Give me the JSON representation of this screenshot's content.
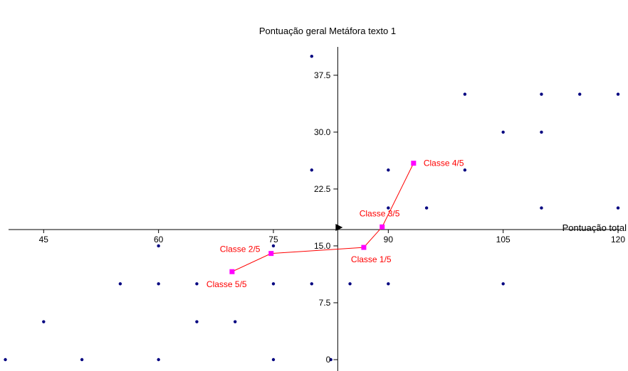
{
  "chart_data": {
    "type": "scatter",
    "title": "Pontuação geral Metáfora texto 1",
    "xlabel": "Pontuação total",
    "ylabel": "",
    "xlim": [
      39.3,
      121.3
    ],
    "ylim": [
      -1.5,
      41.8
    ],
    "x_axis_crossing_y": 17.15,
    "y_axis_crossing_x": 83.4,
    "x_ticks": [
      {
        "value": 45,
        "label": "45"
      },
      {
        "value": 60,
        "label": "60"
      },
      {
        "value": 75,
        "label": "75"
      },
      {
        "value": 90,
        "label": "90"
      },
      {
        "value": 105,
        "label": "105"
      },
      {
        "value": 120,
        "label": "120"
      }
    ],
    "y_ticks": [
      {
        "value": 0,
        "label": "0"
      },
      {
        "value": 7.5,
        "label": "7.5"
      },
      {
        "value": 15,
        "label": "15.0"
      },
      {
        "value": 22.5,
        "label": "22.5"
      },
      {
        "value": 30,
        "label": "30.0"
      },
      {
        "value": 37.5,
        "label": "37.5"
      }
    ],
    "colors": {
      "points": "#000080",
      "centroids": "#ff00ff",
      "centroid_line": "#ff0000",
      "centroid_labels": "#ff0000",
      "axes": "#000000"
    },
    "series": [
      {
        "points": [
          {
            "x": 40,
            "y": 0
          },
          {
            "x": 50,
            "y": 0
          },
          {
            "x": 60,
            "y": 0
          },
          {
            "x": 75,
            "y": 0
          },
          {
            "x": 82.5,
            "y": 0
          },
          {
            "x": 45,
            "y": 5
          },
          {
            "x": 65,
            "y": 5
          },
          {
            "x": 70,
            "y": 5
          },
          {
            "x": 55,
            "y": 10
          },
          {
            "x": 60,
            "y": 10
          },
          {
            "x": 65,
            "y": 10
          },
          {
            "x": 75,
            "y": 10
          },
          {
            "x": 80,
            "y": 10
          },
          {
            "x": 85,
            "y": 10
          },
          {
            "x": 90,
            "y": 10
          },
          {
            "x": 105,
            "y": 10
          },
          {
            "x": 60,
            "y": 15
          },
          {
            "x": 75,
            "y": 15
          },
          {
            "x": 90,
            "y": 20
          },
          {
            "x": 95,
            "y": 20
          },
          {
            "x": 110,
            "y": 20
          },
          {
            "x": 120,
            "y": 20
          },
          {
            "x": 80,
            "y": 25
          },
          {
            "x": 90,
            "y": 25
          },
          {
            "x": 100,
            "y": 25
          },
          {
            "x": 105,
            "y": 30
          },
          {
            "x": 110,
            "y": 30
          },
          {
            "x": 100,
            "y": 35
          },
          {
            "x": 110,
            "y": 35
          },
          {
            "x": 115,
            "y": 35
          },
          {
            "x": 120,
            "y": 35
          },
          {
            "x": 80,
            "y": 40
          }
        ]
      }
    ],
    "centroids": [
      {
        "label": "Classe 5/5",
        "x": 69.6,
        "y": 11.6
      },
      {
        "label": "Classe 2/5",
        "x": 74.7,
        "y": 14.0
      },
      {
        "label": "Classe 1/5",
        "x": 86.8,
        "y": 14.8
      },
      {
        "label": "Classe 3/5",
        "x": 89.2,
        "y": 17.5
      },
      {
        "label": "Classe 4/5",
        "x": 93.3,
        "y": 25.9
      }
    ]
  }
}
